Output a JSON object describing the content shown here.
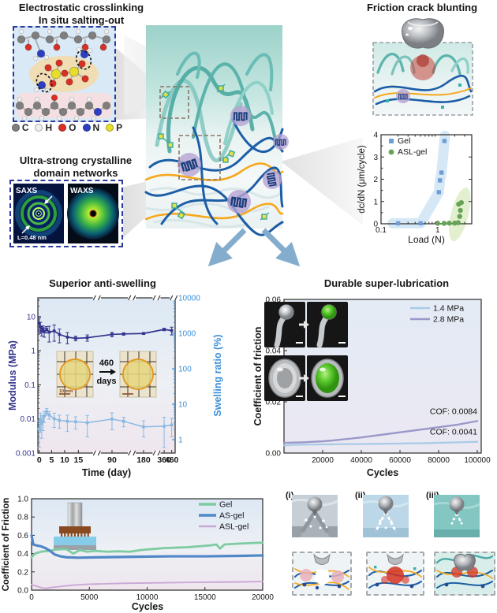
{
  "figure": {
    "electrostatic": {
      "title1": "Electrostatic crosslinking",
      "title2": "In situ salting-out",
      "atoms": [
        {
          "label": "C",
          "color": "#7f7f7f"
        },
        {
          "label": "H",
          "color": "#efefef"
        },
        {
          "label": "O",
          "color": "#d93025"
        },
        {
          "label": "N",
          "color": "#2c3fc4"
        },
        {
          "label": "P",
          "color": "#e8de2a"
        }
      ]
    },
    "crystalline": {
      "title1": "Ultra-strong crystalline",
      "title2": "domain networks",
      "saxs": "SAXS",
      "waxs": "WAXS",
      "annotation": "L=0.48 nm"
    },
    "friction_blunting": {
      "title": "Friction crack blunting"
    },
    "mechanism_labels": [
      "(i)",
      "(ii)",
      "(iii)"
    ]
  },
  "chart_data": [
    {
      "id": "crack_growth",
      "type": "scatter",
      "xlabel": "Load (N)",
      "ylabel": "dc/dN (μm/cycle)",
      "xscale": "log",
      "xlim": [
        0.1,
        4
      ],
      "ylim": [
        0,
        4
      ],
      "xticks": [
        {
          "v": 0.1,
          "label": "0.1"
        },
        {
          "v": 1,
          "label": "1"
        }
      ],
      "yticks": [
        {
          "v": 0,
          "label": "0"
        },
        {
          "v": 1,
          "label": "1"
        },
        {
          "v": 2,
          "label": "2"
        },
        {
          "v": 3,
          "label": "3"
        },
        {
          "v": 4,
          "label": "4"
        }
      ],
      "series": [
        {
          "name": "Gel",
          "marker": "square",
          "color": "#6f9ed6",
          "band": "#d4e7f6",
          "points": [
            [
              0.2,
              0.02
            ],
            [
              0.5,
              0.02
            ],
            [
              1.05,
              1.42
            ],
            [
              1.1,
              1.95
            ],
            [
              1.17,
              2.3
            ],
            [
              1.32,
              3.72
            ]
          ]
        },
        {
          "name": "ASL-gel",
          "marker": "circle",
          "color": "#67a355",
          "band": "#e0efcc",
          "points": [
            [
              1.0,
              0.02
            ],
            [
              1.3,
              0.02
            ],
            [
              1.6,
              0.03
            ],
            [
              2.0,
              0.03
            ],
            [
              2.3,
              0.05
            ],
            [
              2.45,
              0.33
            ],
            [
              2.52,
              0.6
            ],
            [
              2.35,
              0.88
            ],
            [
              2.62,
              0.95
            ]
          ]
        }
      ]
    },
    {
      "id": "anti_swelling",
      "type": "line_broken_x",
      "title": "Superior anti-swelling",
      "xlabel": "Time (day)",
      "left_axis": {
        "label": "Modulus (MPa)",
        "color": "#33348e",
        "ticks": [
          {
            "v": 10,
            "label": "10"
          },
          {
            "v": 1,
            "label": "1"
          },
          {
            "v": 0.1,
            "label": "0.1"
          },
          {
            "v": 0.01,
            "label": "0.01"
          },
          {
            "v": 0.001,
            "label": "0.001"
          }
        ]
      },
      "right_axis": {
        "label": "Swelling ratio (%)",
        "color": "#3d8fd6",
        "ticks": [
          {
            "v": 10000,
            "label": "10000"
          },
          {
            "v": 1000,
            "label": "1000"
          },
          {
            "v": 100,
            "label": "100"
          },
          {
            "v": 10,
            "label": "10"
          },
          {
            "v": 1,
            "label": "1"
          }
        ]
      },
      "xticks": [
        {
          "day": 0,
          "label": "0"
        },
        {
          "day": 5,
          "label": "5"
        },
        {
          "day": 10,
          "label": "10"
        },
        {
          "day": 15,
          "label": "15"
        },
        {
          "day": 90,
          "label": "90"
        },
        {
          "day": 180,
          "label": "180"
        },
        {
          "day": 360,
          "label": "360"
        },
        {
          "day": 460,
          "label": "460"
        }
      ],
      "x_anchors": [
        [
          0,
          0.01
        ],
        [
          5,
          0.1
        ],
        [
          10,
          0.195
        ],
        [
          15,
          0.295
        ],
        [
          20,
          0.36
        ],
        [
          90,
          0.54
        ],
        [
          120,
          0.625
        ],
        [
          180,
          0.77
        ],
        [
          360,
          0.92
        ],
        [
          460,
          0.975
        ]
      ],
      "breaks": [
        0.43,
        0.685,
        0.865
      ],
      "series": [
        {
          "name": "Modulus",
          "axis": "left",
          "color": "#33348e",
          "points": [
            [
              0,
              6.3,
              2.8
            ],
            [
              0.5,
              5.0,
              1.8
            ],
            [
              1,
              3.9,
              1.2
            ],
            [
              1.5,
              4.4,
              0.9
            ],
            [
              2,
              3.6,
              1.1
            ],
            [
              3,
              4.2,
              0.9
            ],
            [
              4,
              3.5,
              1.7
            ],
            [
              6,
              3.8,
              1.9
            ],
            [
              8,
              3.0,
              1.3
            ],
            [
              11,
              2.5,
              0.9
            ],
            [
              14,
              2.3,
              0.35
            ],
            [
              20,
              2.4,
              0.5
            ],
            [
              90,
              3.0,
              0.45
            ],
            [
              120,
              3.1,
              0.25
            ],
            [
              180,
              3.2,
              0.2
            ],
            [
              360,
              4.2,
              0.35
            ],
            [
              460,
              3.9,
              1.0
            ]
          ]
        },
        {
          "name": "Swelling ratio",
          "axis": "right",
          "color": "#8ab9e2",
          "points": [
            [
              0,
              2.0,
              1.4
            ],
            [
              0.5,
              3.6,
              2.0
            ],
            [
              1,
              2.9,
              1.8
            ],
            [
              1.5,
              3.3,
              1.5
            ],
            [
              2,
              4.6,
              1.6
            ],
            [
              3,
              6.2,
              1.3
            ],
            [
              4,
              5.0,
              1.2
            ],
            [
              6,
              3.9,
              1.7
            ],
            [
              8,
              3.5,
              1.4
            ],
            [
              11,
              3.3,
              1.6
            ],
            [
              14,
              3.2,
              1.2
            ],
            [
              20,
              3.0,
              1.8
            ],
            [
              90,
              3.8,
              1.9
            ],
            [
              120,
              3.3,
              1.0
            ],
            [
              180,
              2.3,
              1.1
            ],
            [
              360,
              2.4,
              1.9
            ],
            [
              460,
              2.6,
              1.4
            ]
          ]
        }
      ],
      "inset": {
        "label_top": "460",
        "label_bottom": "days",
        "scalebar": "10 mm"
      }
    },
    {
      "id": "lubrication",
      "type": "line",
      "title": "Durable super-lubrication",
      "xlabel": "Cycles",
      "ylabel": "Coefficient of friction",
      "xlim": [
        0,
        100000
      ],
      "ylim": [
        0,
        0.06
      ],
      "xticks": [
        {
          "v": 20000,
          "label": "20000"
        },
        {
          "v": 40000,
          "label": "40000"
        },
        {
          "v": 60000,
          "label": "60000"
        },
        {
          "v": 80000,
          "label": "80000"
        },
        {
          "v": 100000,
          "label": "100000"
        }
      ],
      "yticks": [
        {
          "v": 0,
          "label": "0.00"
        },
        {
          "v": 0.02,
          "label": "0.02"
        },
        {
          "v": 0.04,
          "label": "0.04"
        },
        {
          "v": 0.06,
          "label": "0.06"
        }
      ],
      "series": [
        {
          "name": "1.4 MPa",
          "color": "#a9cbe8",
          "x_step": 5000,
          "values": [
            0.003,
            0.0032,
            0.0033,
            0.0033,
            0.0034,
            0.0034,
            0.0035,
            0.0035,
            0.0035,
            0.0036,
            0.0036,
            0.0037,
            0.0037,
            0.0038,
            0.0038,
            0.0039,
            0.004,
            0.0041,
            0.0042,
            0.0043,
            0.0044
          ]
        },
        {
          "name": "2.8 MPa",
          "color": "#9a97cb",
          "x_step": 5000,
          "values": [
            0.004,
            0.0041,
            0.0042,
            0.0044,
            0.0046,
            0.0049,
            0.0053,
            0.0057,
            0.0061,
            0.0066,
            0.0071,
            0.0076,
            0.0081,
            0.0086,
            0.0091,
            0.0096,
            0.0101,
            0.0106,
            0.0111,
            0.0118,
            0.0125
          ]
        }
      ],
      "annotations": [
        {
          "text": "COF: 0.0084",
          "series": "2.8 MPa"
        },
        {
          "text": "COF: 0.0041",
          "series": "1.4 MPa"
        }
      ]
    },
    {
      "id": "friction_cycles",
      "type": "line",
      "xlabel": "Cycles",
      "ylabel": "Coefficient of Friction",
      "xlim": [
        0,
        20000
      ],
      "ylim": [
        0,
        1.0
      ],
      "xticks": [
        {
          "v": 0,
          "label": "0"
        },
        {
          "v": 5000,
          "label": "5000"
        },
        {
          "v": 10000,
          "label": "10000"
        },
        {
          "v": 15000,
          "label": "15000"
        },
        {
          "v": 20000,
          "label": "20000"
        }
      ],
      "yticks": [
        {
          "v": 0,
          "label": "0.0"
        },
        {
          "v": 0.2,
          "label": "0.2"
        },
        {
          "v": 0.4,
          "label": "0.4"
        },
        {
          "v": 0.6,
          "label": "0.6"
        },
        {
          "v": 0.8,
          "label": "0.8"
        },
        {
          "v": 1,
          "label": "1.0"
        }
      ],
      "series": [
        {
          "name": "Gel",
          "color": "#7ecba1",
          "points": [
            [
              0,
              0.36
            ],
            [
              300,
              0.4
            ],
            [
              800,
              0.42
            ],
            [
              1500,
              0.43
            ],
            [
              2200,
              0.445
            ],
            [
              3000,
              0.45
            ],
            [
              3600,
              0.4
            ],
            [
              4200,
              0.44
            ],
            [
              4800,
              0.42
            ],
            [
              5500,
              0.43
            ],
            [
              6500,
              0.42
            ],
            [
              7500,
              0.425
            ],
            [
              8500,
              0.42
            ],
            [
              9500,
              0.44
            ],
            [
              10500,
              0.45
            ],
            [
              11500,
              0.46
            ],
            [
              12500,
              0.465
            ],
            [
              13500,
              0.47
            ],
            [
              14500,
              0.48
            ],
            [
              15500,
              0.49
            ],
            [
              16000,
              0.5
            ],
            [
              16300,
              0.455
            ],
            [
              16700,
              0.5
            ],
            [
              18000,
              0.51
            ],
            [
              19000,
              0.515
            ],
            [
              20000,
              0.52
            ]
          ]
        },
        {
          "name": "AS-gel",
          "color": "#4f87c7",
          "points": [
            [
              0,
              0.6
            ],
            [
              150,
              0.5
            ],
            [
              400,
              0.49
            ],
            [
              800,
              0.48
            ],
            [
              1200,
              0.46
            ],
            [
              1600,
              0.43
            ],
            [
              2000,
              0.39
            ],
            [
              2500,
              0.37
            ],
            [
              3000,
              0.36
            ],
            [
              4000,
              0.355
            ],
            [
              6000,
              0.36
            ],
            [
              9000,
              0.365
            ],
            [
              12000,
              0.37
            ],
            [
              15000,
              0.37
            ],
            [
              18000,
              0.375
            ],
            [
              20000,
              0.38
            ]
          ]
        },
        {
          "name": "ASL-gel",
          "color": "#c9a6d6",
          "points": [
            [
              0,
              0.06
            ],
            [
              400,
              0.045
            ],
            [
              900,
              0.025
            ],
            [
              1300,
              0.02
            ],
            [
              1800,
              0.03
            ],
            [
              2500,
              0.04
            ],
            [
              3200,
              0.05
            ],
            [
              4000,
              0.058
            ],
            [
              5000,
              0.065
            ],
            [
              6500,
              0.07
            ],
            [
              8000,
              0.075
            ],
            [
              10000,
              0.078
            ],
            [
              12000,
              0.082
            ],
            [
              14000,
              0.085
            ],
            [
              16000,
              0.088
            ],
            [
              18000,
              0.09
            ],
            [
              20000,
              0.095
            ]
          ]
        }
      ]
    }
  ]
}
